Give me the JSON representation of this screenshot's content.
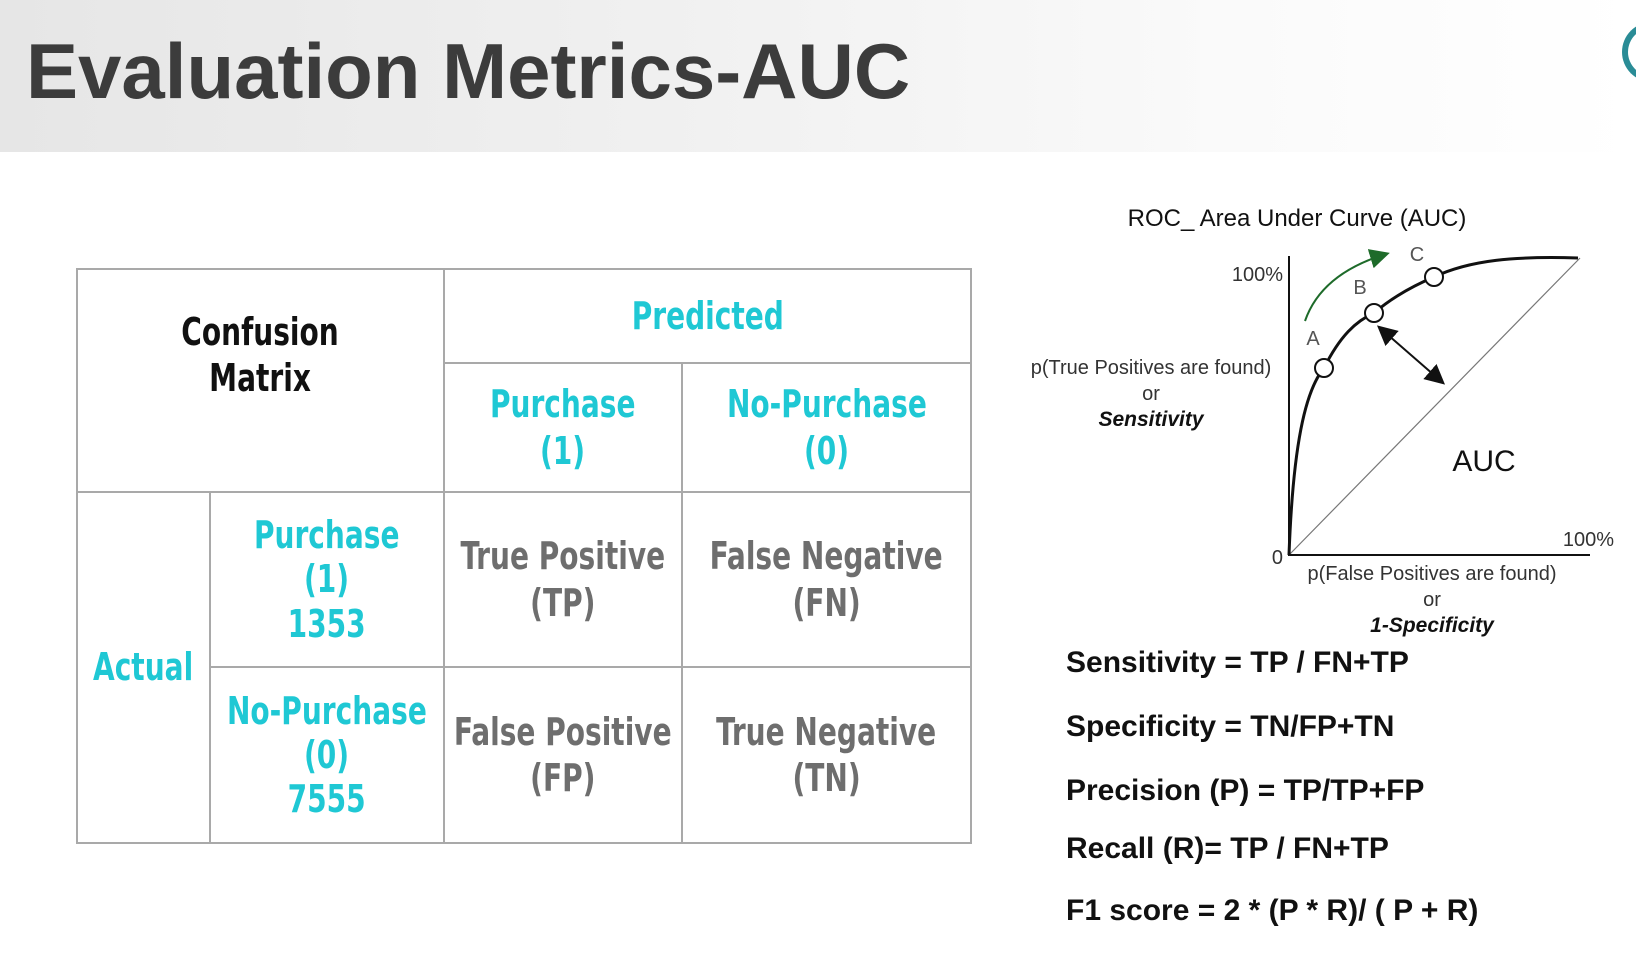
{
  "title": "Evaluation Metrics-AUC",
  "matrix": {
    "corner": [
      "Confusion",
      "Matrix"
    ],
    "predicted": "Predicted",
    "col_purchase": [
      "Purchase",
      "(1)"
    ],
    "col_nopurchase": [
      "No-Purchase",
      "(0)"
    ],
    "actual": "Actual",
    "row_purchase": [
      "Purchase",
      "(1)",
      "1353"
    ],
    "row_nopurchase": [
      "No-Purchase",
      "(0)",
      "7555"
    ],
    "tp": [
      "True Positive",
      "(TP)"
    ],
    "fn": [
      "False Negative",
      "(FN)"
    ],
    "fp": [
      "False Positive",
      "(FP)"
    ],
    "tn": [
      "True Negative",
      "(TN)"
    ]
  },
  "roc": {
    "title": "ROC_ Area Under Curve (AUC)",
    "y_top": "100%",
    "y_label": [
      "p(True Positives are found)",
      "or",
      "Sensitivity"
    ],
    "x_right": "100%",
    "origin": "0",
    "x_label": [
      "p(False Positives are found)",
      "or",
      "1-Specificity"
    ],
    "auc": "AUC",
    "points": [
      "A",
      "B",
      "C"
    ]
  },
  "formulas": [
    "Sensitivity = TP / FN+TP",
    "Specificity = TN/FP+TN",
    "Precision (P) = TP/TP+FP",
    "Recall (R)= TP / FN+TP",
    "F1 score = 2 * (P * R)/ ( P + R)"
  ],
  "colors": {
    "cyan": "#1fc8d4",
    "grey": "#6e6e6e",
    "title": "#3c3c3c",
    "arrow_green": "#1e6b2a"
  }
}
